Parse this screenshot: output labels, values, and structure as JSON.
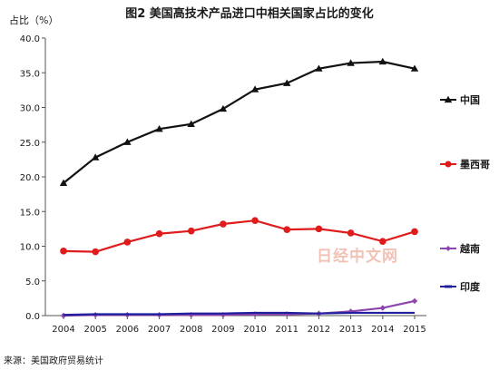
{
  "title": "图2  美国高技术产品进口中相关国家占比的变化",
  "source": "来源：美国政府贸易统计",
  "watermark": "日经中文网",
  "chart_data": {
    "type": "line",
    "title": "图2  美国高技术产品进口中相关国家占比的变化",
    "ylabel": "占比（%）",
    "xlabel": "",
    "x": [
      2004,
      2005,
      2006,
      2007,
      2008,
      2009,
      2010,
      2011,
      2012,
      2013,
      2014,
      2015
    ],
    "ylim": [
      0,
      40
    ],
    "yticks": [
      "0.0",
      "5.0",
      "10.0",
      "15.0",
      "20.0",
      "25.0",
      "30.0",
      "35.0",
      "40.0"
    ],
    "legend_position": "right",
    "grid": false,
    "series": [
      {
        "name": "中国",
        "color": "#111111",
        "marker": "triangle",
        "values": [
          19.1,
          22.8,
          25.0,
          26.9,
          27.6,
          29.8,
          32.6,
          33.5,
          35.6,
          36.4,
          36.6,
          35.6
        ]
      },
      {
        "name": "墨西哥",
        "color": "#e01b1b",
        "marker": "circle",
        "values": [
          9.3,
          9.2,
          10.6,
          11.8,
          12.2,
          13.2,
          13.7,
          12.4,
          12.5,
          11.9,
          10.7,
          12.1
        ]
      },
      {
        "name": "越南",
        "color": "#8e44ad",
        "marker": "diamond",
        "values": [
          0.0,
          0.1,
          0.1,
          0.1,
          0.1,
          0.1,
          0.2,
          0.2,
          0.3,
          0.6,
          1.1,
          2.1
        ]
      },
      {
        "name": "印度",
        "color": "#1f1f9e",
        "marker": "none",
        "values": [
          0.1,
          0.2,
          0.2,
          0.2,
          0.3,
          0.3,
          0.4,
          0.4,
          0.3,
          0.4,
          0.4,
          0.4
        ]
      }
    ]
  }
}
